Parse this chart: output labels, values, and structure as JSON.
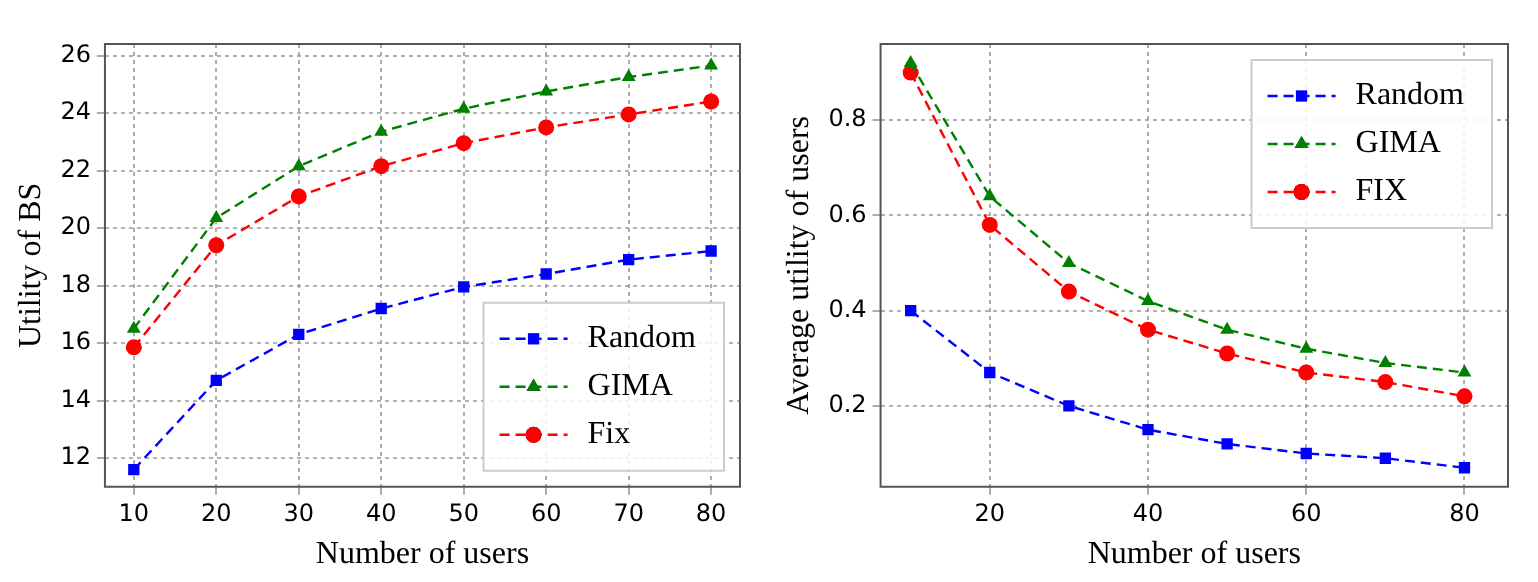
{
  "chart_data": [
    {
      "type": "line",
      "xlabel": "Number of users",
      "ylabel": "Utility of BS",
      "x": [
        10,
        20,
        30,
        40,
        50,
        60,
        70,
        80
      ],
      "xlim": [
        6.5,
        83.5
      ],
      "xticks": [
        10,
        20,
        30,
        40,
        50,
        60,
        70,
        80
      ],
      "ylim": [
        11.0,
        26.4
      ],
      "yticks": [
        12,
        14,
        16,
        18,
        20,
        22,
        24,
        26
      ],
      "grid": true,
      "legend": "bottom right",
      "line_style": "dashed",
      "series": [
        {
          "name": "Random",
          "color": "#0000ff",
          "marker": "square",
          "values": [
            11.6,
            14.7,
            16.3,
            17.2,
            17.95,
            18.4,
            18.9,
            19.2
          ]
        },
        {
          "name": "GIMA",
          "color": "#008000",
          "marker": "triangle",
          "values": [
            16.5,
            20.35,
            22.15,
            23.35,
            24.15,
            24.75,
            25.25,
            25.65
          ]
        },
        {
          "name": "Fix",
          "color": "#ff0000",
          "marker": "circle",
          "values": [
            15.85,
            19.4,
            21.1,
            22.15,
            22.95,
            23.5,
            23.95,
            24.4
          ]
        }
      ]
    },
    {
      "type": "line",
      "xlabel": "Number of users",
      "ylabel": "Average utility of users",
      "x": [
        10,
        20,
        30,
        40,
        50,
        60,
        70,
        80
      ],
      "xlim": [
        6.2,
        85.5
      ],
      "xticks": [
        20,
        40,
        60,
        80
      ],
      "ylim": [
        0.03,
        0.96
      ],
      "yticks": [
        0.2,
        0.4,
        0.6,
        0.8
      ],
      "grid": true,
      "legend": "top right",
      "line_style": "dashed",
      "series": [
        {
          "name": "Random",
          "color": "#0000ff",
          "marker": "square",
          "values": [
            0.4,
            0.27,
            0.2,
            0.15,
            0.12,
            0.1,
            0.09,
            0.07
          ]
        },
        {
          "name": "GIMA",
          "color": "#008000",
          "marker": "triangle",
          "values": [
            0.92,
            0.64,
            0.5,
            0.42,
            0.36,
            0.32,
            0.29,
            0.27
          ]
        },
        {
          "name": "FIX",
          "color": "#ff0000",
          "marker": "circle",
          "values": [
            0.9,
            0.58,
            0.44,
            0.36,
            0.31,
            0.27,
            0.25,
            0.22
          ]
        }
      ]
    }
  ]
}
